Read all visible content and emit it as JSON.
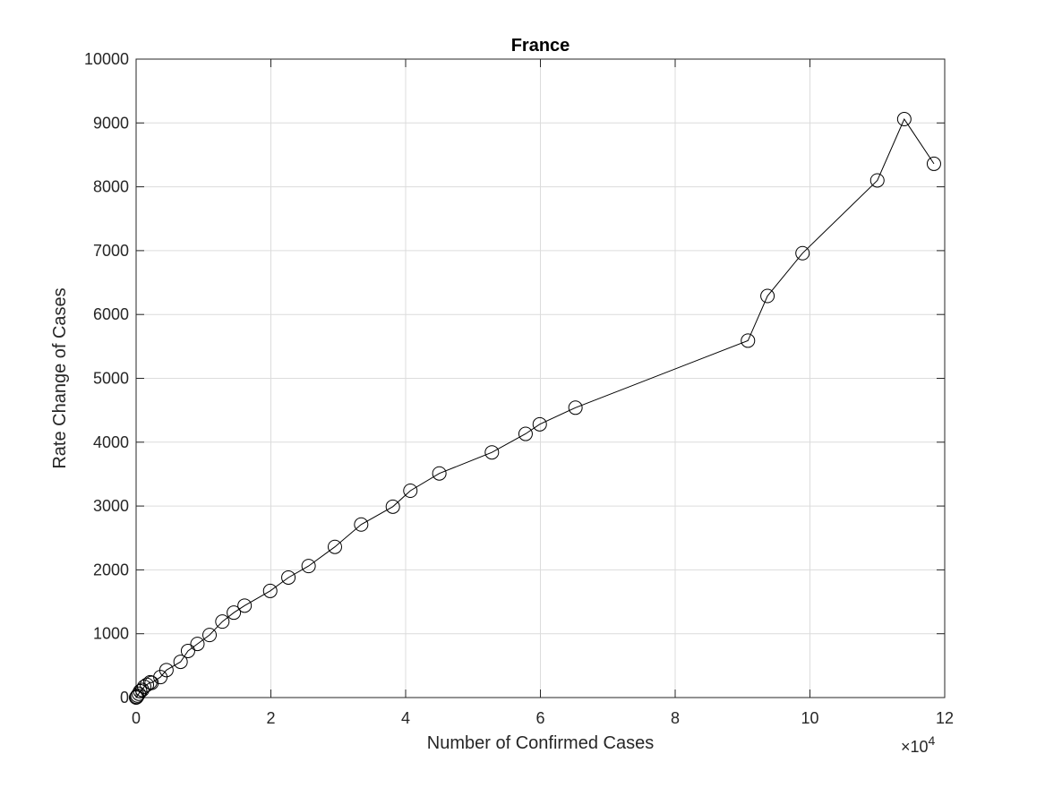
{
  "chart_data": {
    "type": "line",
    "title": "France",
    "xlabel": "Number of Confirmed Cases",
    "ylabel": "Rate Change of Cases",
    "x_exponent_label": "×10",
    "x_exponent_power": "4",
    "xlim": [
      0,
      120000
    ],
    "ylim": [
      0,
      10000
    ],
    "x_ticks": [
      0,
      20000,
      40000,
      60000,
      80000,
      100000,
      120000
    ],
    "x_tick_labels": [
      "0",
      "2",
      "4",
      "6",
      "8",
      "10",
      "12"
    ],
    "y_ticks": [
      0,
      1000,
      2000,
      3000,
      4000,
      5000,
      6000,
      7000,
      8000,
      9000,
      10000
    ],
    "y_tick_labels": [
      "0",
      "1000",
      "2000",
      "3000",
      "4000",
      "5000",
      "6000",
      "7000",
      "8000",
      "9000",
      "10000"
    ],
    "grid": true,
    "marker": "circle",
    "line_color": "#000000",
    "series": [
      {
        "x": [
          0,
          100,
          200,
          400,
          600,
          900,
          1200,
          1600,
          2100,
          2300,
          3600,
          4500,
          6600,
          7700,
          9100,
          10900,
          12800,
          14500,
          16100,
          19900,
          22600,
          25600,
          29500,
          33400,
          38100,
          40700,
          45000,
          52800,
          57800,
          59900,
          65200,
          90800,
          93700,
          98900,
          110000,
          114000,
          118400
        ],
        "y": [
          0,
          10,
          30,
          60,
          100,
          120,
          170,
          200,
          240,
          230,
          320,
          430,
          560,
          730,
          840,
          980,
          1190,
          1330,
          1440,
          1670,
          1880,
          2060,
          2360,
          2710,
          2990,
          3240,
          3510,
          3840,
          4130,
          4280,
          4540,
          5590,
          6290,
          6960,
          8100,
          9060,
          8360
        ]
      }
    ]
  }
}
